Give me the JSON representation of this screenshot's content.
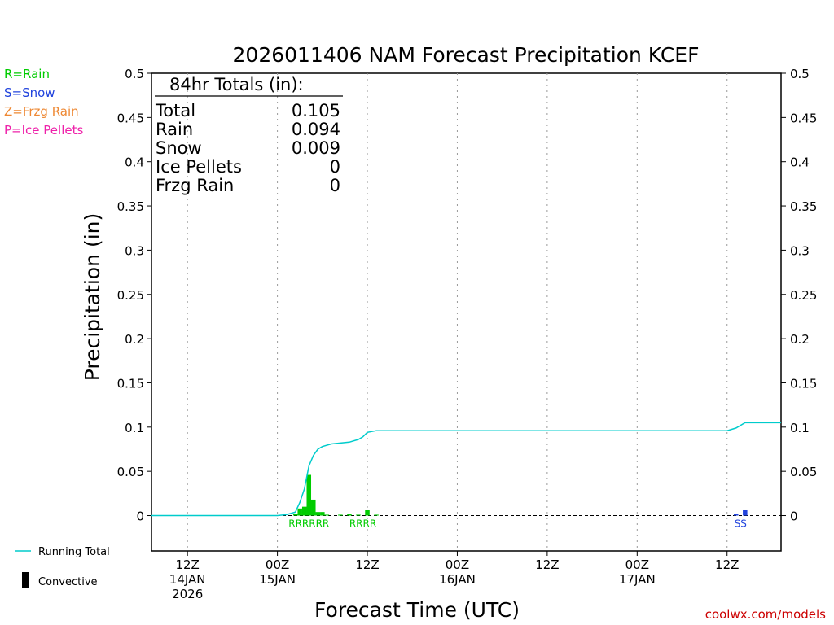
{
  "colors": {
    "rain": "#00cc00",
    "snow": "#2244dd",
    "frzg_rain": "#ee8833",
    "ice_pellets": "#ee22aa",
    "running_total": "#00cccc",
    "convective": "#000000",
    "watermark": "#cc0000",
    "grid": "#999999"
  },
  "ptype_legend": [
    {
      "label": "R=Rain",
      "color_key": "rain"
    },
    {
      "label": "S=Snow",
      "color_key": "snow"
    },
    {
      "label": "Z=Frzg Rain",
      "color_key": "frzg_rain"
    },
    {
      "label": "P=Ice Pellets",
      "color_key": "ice_pellets"
    }
  ],
  "bottom_legend": {
    "running_total": "Running Total",
    "convective": "Convective"
  },
  "totals_box": {
    "heading": "84hr Totals (in):",
    "rows": [
      {
        "label": "Total",
        "value": "0.105"
      },
      {
        "label": "Rain",
        "value": "0.094"
      },
      {
        "label": "Snow",
        "value": "0.009"
      },
      {
        "label": "Ice Pellets",
        "value": "0"
      },
      {
        "label": "Frzg Rain",
        "value": "0"
      }
    ]
  },
  "watermark": "coolwx.com/models",
  "chart_data": {
    "type": "bar",
    "title": "2026011406 NAM Forecast Precipitation KCEF",
    "xlabel": "Forecast Time (UTC)",
    "ylabel": "Precipitation (in)",
    "ylim": [
      -0.04,
      0.5
    ],
    "xlim": [
      -4,
      66
    ],
    "y_ticks": [
      0,
      0.05,
      0.1,
      0.15,
      0.2,
      0.25,
      0.3,
      0.35,
      0.4,
      0.45,
      0.5
    ],
    "y_tick_labels": [
      "0",
      "0.05",
      "0.1",
      "0.15",
      "0.2",
      "0.25",
      "0.3",
      "0.35",
      "0.4",
      "0.45",
      "0.5"
    ],
    "grid": "vertical dotted",
    "x_ticks": [
      {
        "hour": 0,
        "lines": [
          "12Z",
          "14JAN",
          "2026"
        ]
      },
      {
        "hour": 10,
        "lines": [
          "00Z",
          "15JAN"
        ]
      },
      {
        "hour": 20,
        "lines": [
          "12Z"
        ]
      },
      {
        "hour": 30,
        "lines": [
          "00Z",
          "16JAN"
        ]
      },
      {
        "hour": 40,
        "lines": [
          "12Z"
        ]
      },
      {
        "hour": 50,
        "lines": [
          "00Z",
          "17JAN"
        ]
      },
      {
        "hour": 60,
        "lines": [
          "12Z"
        ]
      }
    ],
    "bars": [
      {
        "hour": 12.0,
        "value": 0.002,
        "type": "rain"
      },
      {
        "hour": 12.5,
        "value": 0.008,
        "type": "rain"
      },
      {
        "hour": 13.0,
        "value": 0.01,
        "type": "rain"
      },
      {
        "hour": 13.5,
        "value": 0.046,
        "type": "rain"
      },
      {
        "hour": 14.0,
        "value": 0.018,
        "type": "rain"
      },
      {
        "hour": 14.5,
        "value": 0.004,
        "type": "rain"
      },
      {
        "hour": 15.0,
        "value": 0.004,
        "type": "rain"
      },
      {
        "hour": 15.5,
        "value": 0.001,
        "type": "rain"
      },
      {
        "hour": 17.0,
        "value": 0.001,
        "type": "rain"
      },
      {
        "hour": 18.0,
        "value": 0.002,
        "type": "rain"
      },
      {
        "hour": 19.0,
        "value": 0.001,
        "type": "rain"
      },
      {
        "hour": 20.0,
        "value": 0.006,
        "type": "rain"
      },
      {
        "hour": 21.0,
        "value": 0.001,
        "type": "rain"
      },
      {
        "hour": 61.0,
        "value": 0.002,
        "type": "snow"
      },
      {
        "hour": 62.0,
        "value": 0.006,
        "type": "snow"
      }
    ],
    "running_total": {
      "name": "Running Total",
      "x": [
        -4,
        0,
        10,
        11,
        12,
        12.5,
        13,
        13.5,
        14,
        14.5,
        15,
        16,
        17,
        18,
        19,
        19.5,
        20,
        21,
        22,
        30,
        40,
        50,
        59,
        60,
        61,
        62,
        63,
        66
      ],
      "y": [
        0,
        0,
        0,
        0.001,
        0.004,
        0.015,
        0.03,
        0.056,
        0.068,
        0.075,
        0.078,
        0.081,
        0.082,
        0.083,
        0.086,
        0.089,
        0.094,
        0.096,
        0.096,
        0.096,
        0.096,
        0.096,
        0.096,
        0.096,
        0.099,
        0.105,
        0.105,
        0.105
      ]
    },
    "ptype_labels": [
      {
        "text": "RRRRRR",
        "hour": 13.5,
        "type": "rain"
      },
      {
        "text": "RRRR",
        "hour": 19.5,
        "type": "rain"
      },
      {
        "text": "SS",
        "hour": 61.5,
        "type": "snow"
      }
    ]
  }
}
